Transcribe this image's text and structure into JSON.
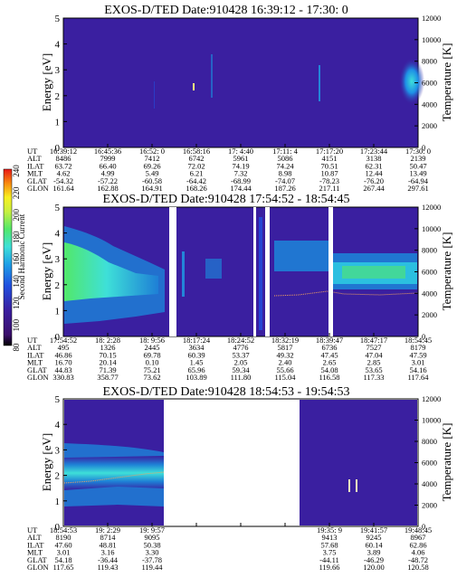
{
  "palette": {
    "background": "#3a1fa0",
    "mid": "#1e7fd6",
    "cyan": "#3ee0d8",
    "green": "#52e86a",
    "gap": "#ffffff"
  },
  "colorbar": {
    "label": "Second Harmonic Current",
    "ticks": [
      "240",
      "220",
      "200",
      "180",
      "160",
      "140",
      "120",
      "100",
      "80"
    ]
  },
  "chart_data": [
    {
      "type": "heatmap",
      "title": "EXOS-D/TED  Date:910428  16:39:12 - 17:30: 0",
      "ylabel": "Energy [eV]",
      "y2label": "Temperature [K]",
      "ylim": [
        0,
        5
      ],
      "y2lim": [
        0,
        12000
      ],
      "yticks": [
        "0",
        "1",
        "2",
        "3",
        "4",
        "5"
      ],
      "y2ticks": [
        "0",
        "2000",
        "4000",
        "6000",
        "8000",
        "10000",
        "12000"
      ],
      "rows": [
        {
          "label": "UT",
          "values": [
            "16:39:12",
            "16:45:36",
            "16:52: 0",
            "16:58:16",
            "17: 4:40",
            "17:11: 4",
            "17:17:20",
            "17:23:44",
            "17:30: 0"
          ]
        },
        {
          "label": "ALT",
          "values": [
            "8486",
            "7999",
            "7412",
            "6742",
            "5961",
            "5086",
            "4151",
            "3138",
            "2139"
          ]
        },
        {
          "label": "ILAT",
          "values": [
            "63.72",
            "66.40",
            "69.26",
            "72.02",
            "74.19",
            "74.24",
            "70.51",
            "62.31",
            "50.47"
          ]
        },
        {
          "label": "MLT",
          "values": [
            "4.62",
            "4.99",
            "5.49",
            "6.21",
            "7.32",
            "8.98",
            "10.87",
            "12.44",
            "13.49"
          ]
        },
        {
          "label": "GLAT",
          "values": [
            "-54.32",
            "-57.22",
            "-60.58",
            "-64.42",
            "-68.99",
            "-74.07",
            "-78.23",
            "-76.20",
            "-64.94"
          ]
        },
        {
          "label": "GLON",
          "values": [
            "161.64",
            "162.88",
            "164.91",
            "168.26",
            "174.44",
            "187.26",
            "217.11",
            "267.44",
            "297.61"
          ]
        }
      ]
    },
    {
      "type": "heatmap",
      "title": "EXOS-D/TED  Date:910428  17:54:52 - 18:54:45",
      "ylabel": "Energy [eV]",
      "y2label": "Temperature [K]",
      "ylim": [
        0,
        5
      ],
      "y2lim": [
        0,
        12000
      ],
      "yticks": [
        "0",
        "1",
        "2",
        "3",
        "4",
        "5"
      ],
      "y2ticks": [
        "0",
        "2000",
        "4000",
        "6000",
        "8000",
        "10000",
        "12000"
      ],
      "rows": [
        {
          "label": "UT",
          "values": [
            "17:54:52",
            "18: 2:28",
            "18: 9:56",
            "18:17:24",
            "18:24:52",
            "18:32:19",
            "18:39:47",
            "18:47:17",
            "18:54:45"
          ]
        },
        {
          "label": "ALT",
          "values": [
            "495",
            "1326",
            "2445",
            "3634",
            "4776",
            "5817",
            "6736",
            "7527",
            "8179"
          ]
        },
        {
          "label": "ILAT",
          "values": [
            "46.86",
            "70.15",
            "69.78",
            "60.39",
            "53.37",
            "49.32",
            "47.45",
            "47.04",
            "47.59"
          ]
        },
        {
          "label": "MLT",
          "values": [
            "16.70",
            "20.14",
            "0.10",
            "1.45",
            "2.05",
            "2.40",
            "2.65",
            "2.85",
            "3.01"
          ]
        },
        {
          "label": "GLAT",
          "values": [
            "44.83",
            "71.39",
            "75.21",
            "65.96",
            "59.34",
            "55.66",
            "54.08",
            "53.65",
            "54.16"
          ]
        },
        {
          "label": "GLON",
          "values": [
            "330.83",
            "358.77",
            "73.62",
            "103.89",
            "111.80",
            "115.04",
            "116.58",
            "117.33",
            "117.64"
          ]
        }
      ]
    },
    {
      "type": "heatmap",
      "title": "EXOS-D/TED  Date:910428  18:54:53 - 19:54:53",
      "ylabel": "Energy [eV]",
      "y2label": "Temperature [K]",
      "ylim": [
        0,
        5
      ],
      "y2lim": [
        0,
        12000
      ],
      "yticks": [
        "0",
        "1",
        "2",
        "3",
        "4",
        "5"
      ],
      "y2ticks": [
        "0",
        "2000",
        "4000",
        "6000",
        "8000",
        "10000",
        "12000"
      ],
      "rows": [
        {
          "label": "UT",
          "values": [
            "18:54:53",
            "19: 2:29",
            "19: 9:57",
            "",
            "",
            "19:35: 9",
            "19:41:57",
            "19:48:45"
          ]
        },
        {
          "label": "ALT",
          "values": [
            "8190",
            "8714",
            "9095",
            "",
            "",
            "9413",
            "9245",
            "8967"
          ]
        },
        {
          "label": "ILAT",
          "values": [
            "47.60",
            "48.81",
            "50.38",
            "",
            "",
            "57.68",
            "60.14",
            "62.86"
          ]
        },
        {
          "label": "MLT",
          "values": [
            "3.01",
            "3.16",
            "3.30",
            "",
            "",
            "3.75",
            "3.89",
            "4.06"
          ]
        },
        {
          "label": "GLAT",
          "values": [
            "54.18",
            "-36.44",
            "-37.78",
            "",
            "",
            "-44.11",
            "-46.29",
            "-48.72"
          ]
        },
        {
          "label": "GLON",
          "values": [
            "117.65",
            "119.43",
            "119.44",
            "",
            "",
            "119.66",
            "120.00",
            "120.58"
          ]
        }
      ]
    }
  ]
}
